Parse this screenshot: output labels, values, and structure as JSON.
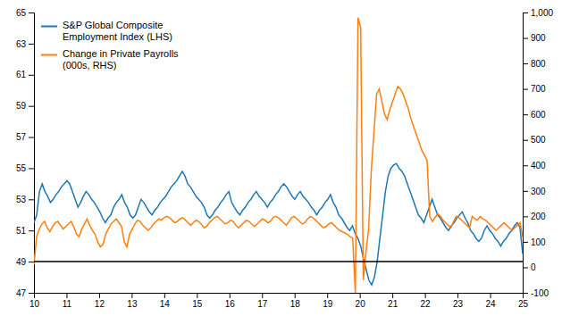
{
  "chart_data": {
    "type": "line",
    "xlim": [
      10,
      25
    ],
    "xticks": [
      10,
      11,
      12,
      13,
      14,
      15,
      16,
      17,
      18,
      19,
      20,
      21,
      22,
      23,
      24,
      25
    ],
    "ylim": [
      47,
      65
    ],
    "yticks": [
      47,
      49,
      51,
      53,
      55,
      57,
      59,
      61,
      63,
      65
    ],
    "y2lim": [
      -100,
      1000
    ],
    "y2ticks": [
      -100,
      0,
      100,
      200,
      300,
      400,
      500,
      600,
      700,
      800,
      900,
      {
        "value": 1000,
        "label": "1,000"
      }
    ],
    "grid": false,
    "legend": "upper left",
    "hline": 49,
    "series": [
      {
        "name": "S&P Global Composite\nEmployment Index (LHS)",
        "x": [
          10,
          10.0843,
          10.1685,
          10.2528,
          10.3371,
          10.4213,
          10.5056,
          10.5899,
          10.6742,
          10.7584,
          10.8427,
          10.927,
          11.0112,
          11.0955,
          11.1798,
          11.264,
          11.3483,
          11.4326,
          11.5169,
          11.6011,
          11.6854,
          11.7697,
          11.8539,
          11.9382,
          12.0225,
          12.1067,
          12.191,
          12.2753,
          12.3596,
          12.4438,
          12.5281,
          12.6124,
          12.6966,
          12.7809,
          12.8652,
          12.9494,
          13.0337,
          13.118,
          13.2022,
          13.2865,
          13.3708,
          13.4551,
          13.5393,
          13.6236,
          13.7079,
          13.7921,
          13.8764,
          13.9607,
          14.0449,
          14.1292,
          14.2135,
          14.2978,
          14.382,
          14.4663,
          14.5506,
          14.6348,
          14.7191,
          14.8034,
          14.8876,
          14.9719,
          15.0562,
          15.1404,
          15.2247,
          15.309,
          15.3933,
          15.4775,
          15.5618,
          15.6461,
          15.7303,
          15.8146,
          15.8989,
          15.9831,
          16.0674,
          16.1517,
          16.236,
          16.3202,
          16.4045,
          16.4888,
          16.573,
          16.6573,
          16.7416,
          16.8258,
          16.9101,
          16.9944,
          17.0787,
          17.1629,
          17.2472,
          17.3315,
          17.4157,
          17.5,
          17.5843,
          17.6685,
          17.7528,
          17.8371,
          17.9213,
          18.0056,
          18.0899,
          18.1742,
          18.2584,
          18.3427,
          18.427,
          18.5112,
          18.5955,
          18.6798,
          18.764,
          18.8483,
          18.9326,
          19.0169,
          19.1011,
          19.1854,
          19.2697,
          19.3539,
          19.4382,
          19.5225,
          19.6067,
          19.691,
          19.7753,
          19.8596,
          19.9438,
          20.0281,
          20.1124,
          20.1966,
          20.2809,
          20.3652,
          20.4494,
          20.5337,
          20.618,
          20.7022,
          20.7865,
          20.8708,
          20.9551,
          21.0393,
          21.1236,
          21.2079,
          21.2921,
          21.3764,
          21.4607,
          21.5449,
          21.6292,
          21.7135,
          21.7978,
          21.882,
          21.9663,
          22.0506,
          22.1348,
          22.2191,
          22.3034,
          22.3876,
          22.4719,
          22.5562,
          22.6404,
          22.7247,
          22.809,
          22.8933,
          22.9775,
          23.0618,
          23.1461,
          23.2303,
          23.3146,
          23.3989,
          23.4831,
          23.5674,
          23.6517,
          23.736,
          23.8202,
          23.9045,
          23.9888,
          24.073,
          24.1573,
          24.2416,
          24.3258,
          24.4101,
          24.4944,
          24.5787,
          24.6629,
          24.7472,
          24.8315,
          24.9157,
          25
        ],
        "values": [
          51.5,
          52.0,
          53.5,
          54.0,
          53.5,
          53.2,
          52.8,
          53.0,
          53.3,
          53.5,
          53.8,
          54.0,
          54.2,
          54.0,
          53.5,
          53.0,
          52.5,
          52.8,
          53.2,
          53.5,
          53.3,
          53.0,
          52.8,
          52.5,
          52.2,
          51.8,
          51.5,
          51.8,
          52.0,
          52.5,
          52.8,
          53.0,
          53.3,
          52.8,
          52.5,
          52.0,
          51.8,
          52.0,
          52.5,
          53.0,
          52.8,
          52.5,
          52.2,
          52.0,
          52.3,
          52.5,
          52.8,
          53.0,
          53.2,
          53.5,
          53.8,
          54.0,
          54.2,
          54.5,
          54.8,
          54.5,
          54.0,
          53.8,
          53.5,
          53.2,
          53.0,
          52.8,
          52.5,
          52.0,
          51.8,
          52.0,
          52.3,
          52.5,
          52.8,
          53.0,
          53.3,
          53.5,
          52.8,
          52.5,
          52.2,
          52.0,
          52.3,
          52.5,
          52.8,
          53.0,
          53.3,
          53.5,
          53.2,
          53.0,
          52.8,
          52.5,
          52.8,
          53.0,
          53.3,
          53.5,
          53.8,
          54.0,
          53.8,
          53.5,
          53.2,
          53.0,
          53.3,
          53.5,
          53.2,
          53.0,
          52.8,
          52.5,
          52.3,
          52.0,
          52.3,
          52.5,
          52.8,
          53.0,
          53.3,
          52.8,
          52.5,
          52.0,
          51.8,
          51.5,
          51.2,
          51.0,
          51.3,
          50.8,
          50.5,
          50.0,
          49.2,
          48.5,
          47.8,
          47.5,
          48.0,
          49.0,
          50.5,
          52.0,
          53.5,
          54.5,
          55.0,
          55.2,
          55.3,
          55.0,
          54.8,
          54.5,
          54.0,
          53.5,
          53.0,
          52.5,
          52.0,
          51.8,
          51.5,
          52.0,
          52.5,
          53.0,
          52.5,
          52.0,
          51.8,
          51.5,
          51.2,
          51.0,
          51.3,
          51.5,
          51.8,
          52.0,
          52.2,
          51.8,
          51.5,
          51.0,
          50.8,
          50.5,
          50.3,
          50.5,
          51.0,
          51.3,
          51.0,
          50.8,
          50.5,
          50.3,
          50.0,
          50.3,
          50.5,
          50.8,
          51.0,
          51.3,
          51.5,
          51.2,
          49.5
        ]
      },
      {
        "name": "Change in Private Payrolls\n(000s, RHS)",
        "axis": "y2",
        "x": [
          10,
          10.0815,
          10.163,
          10.2446,
          10.3261,
          10.4076,
          10.4891,
          10.5707,
          10.6522,
          10.7337,
          10.8152,
          10.8967,
          10.9783,
          11.0598,
          11.1413,
          11.2228,
          11.3043,
          11.3859,
          11.4674,
          11.5489,
          11.6304,
          11.712,
          11.7935,
          11.875,
          11.9565,
          12.038,
          12.1196,
          12.2011,
          12.2826,
          12.3641,
          12.4457,
          12.5272,
          12.6087,
          12.6902,
          12.7717,
          12.8533,
          12.9348,
          13.0163,
          13.0978,
          13.1793,
          13.2609,
          13.3424,
          13.4239,
          13.5054,
          13.587,
          13.6685,
          13.75,
          13.8315,
          13.913,
          13.9946,
          14.0761,
          14.1576,
          14.2391,
          14.3207,
          14.4022,
          14.4837,
          14.5652,
          14.6467,
          14.7283,
          14.8098,
          14.8913,
          14.9728,
          15.0543,
          15.1359,
          15.2174,
          15.2989,
          15.3804,
          15.462,
          15.5435,
          15.625,
          15.7065,
          15.788,
          15.8696,
          15.9511,
          16.0326,
          16.1141,
          16.1957,
          16.2772,
          16.3587,
          16.4402,
          16.5217,
          16.6033,
          16.6848,
          16.7663,
          16.8478,
          16.9293,
          17.0109,
          17.0924,
          17.1739,
          17.2554,
          17.337,
          17.4185,
          17.5,
          17.5815,
          17.663,
          17.7446,
          17.8261,
          17.9076,
          17.9891,
          18.0707,
          18.1522,
          18.2337,
          18.3152,
          18.3967,
          18.4783,
          18.5598,
          18.6413,
          18.7228,
          18.8043,
          18.8859,
          18.9674,
          19.0489,
          19.1304,
          19.212,
          19.2935,
          19.375,
          19.4565,
          19.538,
          19.6196,
          19.7011,
          19.7826,
          19.8641,
          19.9457,
          20.0272,
          20.1087,
          20.1902,
          20.2717,
          20.3533,
          20.4348,
          20.5163,
          20.5978,
          20.6793,
          20.7609,
          20.8424,
          20.9239,
          21.0054,
          21.087,
          21.1685,
          21.25,
          21.3315,
          21.413,
          21.4946,
          21.5761,
          21.6576,
          21.7391,
          21.8207,
          21.9022,
          21.9837,
          22.0652,
          22.1467,
          22.2283,
          22.3098,
          22.3913,
          22.4728,
          22.5543,
          22.6359,
          22.7174,
          22.7989,
          22.8804,
          22.962,
          23.0435,
          23.125,
          23.2065,
          23.288,
          23.3696,
          23.4511,
          23.5326,
          23.6141,
          23.6957,
          23.7772,
          23.8587,
          23.9402,
          24.0217,
          24.1033,
          24.1848,
          24.2663,
          24.3478,
          24.4293,
          24.5109,
          24.5924,
          24.6739,
          24.7554,
          24.837,
          24.9185,
          25
        ],
        "values": [
          10,
          120,
          150,
          170,
          180,
          155,
          140,
          160,
          175,
          180,
          165,
          150,
          160,
          170,
          180,
          160,
          130,
          120,
          150,
          170,
          190,
          165,
          145,
          130,
          100,
          80,
          90,
          130,
          150,
          170,
          180,
          190,
          175,
          160,
          100,
          80,
          130,
          150,
          170,
          185,
          180,
          165,
          155,
          145,
          155,
          170,
          180,
          190,
          185,
          195,
          200,
          195,
          185,
          175,
          180,
          190,
          195,
          185,
          175,
          165,
          175,
          185,
          180,
          170,
          155,
          160,
          175,
          185,
          195,
          200,
          190,
          180,
          170,
          175,
          185,
          180,
          165,
          155,
          165,
          175,
          185,
          180,
          170,
          160,
          170,
          180,
          190,
          185,
          175,
          180,
          195,
          200,
          195,
          185,
          175,
          165,
          180,
          195,
          200,
          190,
          180,
          170,
          175,
          190,
          200,
          195,
          185,
          175,
          165,
          155,
          160,
          170,
          175,
          165,
          155,
          145,
          140,
          135,
          130,
          120,
          115,
          -100,
          980,
          940,
          -50,
          60,
          150,
          380,
          530,
          680,
          700,
          650,
          600,
          580,
          620,
          650,
          680,
          710,
          700,
          680,
          650,
          620,
          580,
          550,
          520,
          490,
          460,
          440,
          420,
          200,
          180,
          195,
          210,
          200,
          185,
          175,
          165,
          155,
          180,
          200,
          195,
          185,
          175,
          165,
          155,
          200,
          190,
          185,
          200,
          190,
          185,
          175,
          165,
          155,
          145,
          155,
          165,
          175,
          165,
          155,
          145,
          155,
          165,
          175,
          120
        ]
      }
    ]
  }
}
